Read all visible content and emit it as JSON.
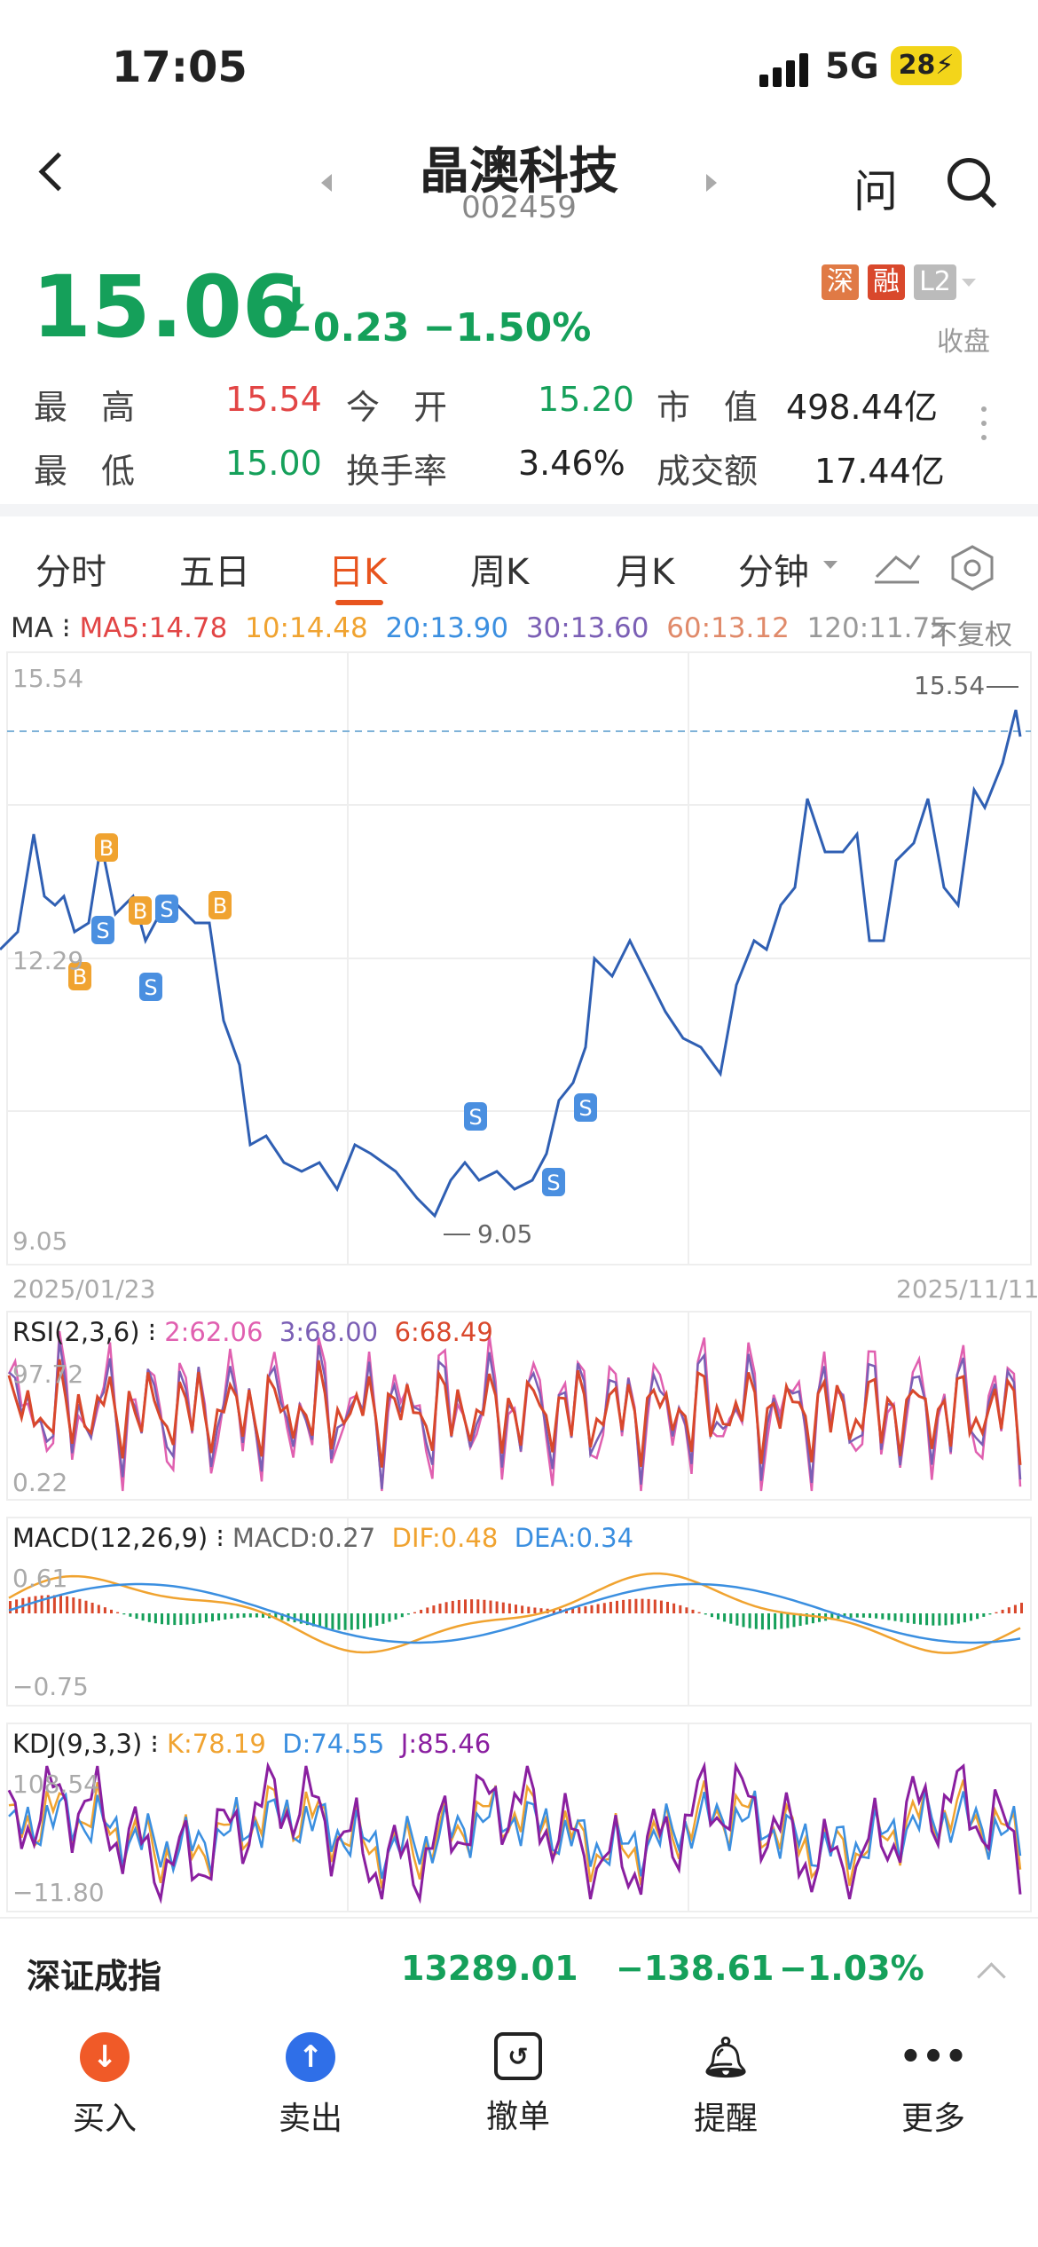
{
  "status_bar": {
    "time": "17:05",
    "network": "5G",
    "battery": "28"
  },
  "header": {
    "name": "晶澳科技",
    "code": "002459",
    "ask_icon": "问"
  },
  "quote": {
    "price": "15.06",
    "change": "−0.23",
    "change_pct": "−1.50%",
    "tags": [
      "深",
      "融",
      "L2"
    ],
    "status": "收盘",
    "high_label": "最　高",
    "high": "15.54",
    "open_label": "今　开",
    "open": "15.20",
    "cap_label": "市　值",
    "cap": "498.44亿",
    "low_label": "最　低",
    "low": "15.00",
    "turnover_label": "换手率",
    "turnover": "3.46%",
    "amount_label": "成交额",
    "amount": "17.44亿"
  },
  "tabs": [
    "分时",
    "五日",
    "日K",
    "周K",
    "月K",
    "分钟"
  ],
  "ma": {
    "label": "MA",
    "ma5": "MA5:14.78",
    "ma10": "10:14.48",
    "ma20": "20:13.90",
    "ma30": "30:13.60",
    "ma60": "60:13.12",
    "ma120": "120:11.75",
    "adjust": "不复权"
  },
  "kline": {
    "y_top": "15.54",
    "y_mid": "12.29",
    "y_bottom": "9.05",
    "max_label": "15.54",
    "min_label": "9.05",
    "date_start": "2025/01/23",
    "date_end": "2025/11/11"
  },
  "rsi": {
    "title": "RSI(2,3,6)",
    "v1": "2:62.06",
    "v2": "3:68.00",
    "v3": "6:68.49",
    "top": "97.72",
    "bottom": "0.22"
  },
  "macd": {
    "title": "MACD(12,26,9)",
    "macd": "MACD:0.27",
    "dif": "DIF:0.48",
    "dea": "DEA:0.34",
    "top": "0.61",
    "bottom": "−0.75"
  },
  "kdj": {
    "title": "KDJ(9,3,3)",
    "k": "K:78.19",
    "d": "D:74.55",
    "j": "J:85.46",
    "top": "108.54",
    "bottom": "−11.80"
  },
  "index": {
    "name": "深证成指",
    "value": "13289.01",
    "change": "−138.61",
    "pct": "−1.03%"
  },
  "actions": [
    {
      "label": "买入"
    },
    {
      "label": "卖出"
    },
    {
      "label": "撤单"
    },
    {
      "label": "提醒"
    },
    {
      "label": "更多"
    }
  ],
  "colors": {
    "up": "#e24545",
    "down": "#15a05a",
    "accent": "#e8541e",
    "line": "#2f5fb3"
  }
}
